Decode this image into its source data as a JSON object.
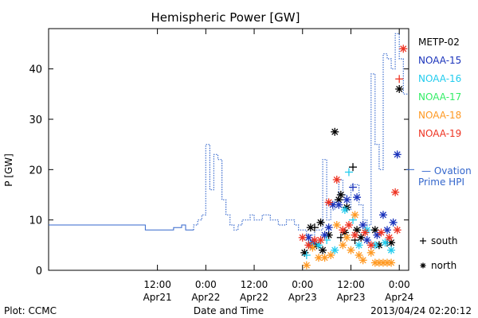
{
  "chart_data": {
    "type": "line",
    "title": "Hemispheric Power [GW]",
    "ylabel": "P [GW]",
    "xlabel": "Date and Time",
    "ylim": [
      0,
      48
    ],
    "yticks": [
      0,
      10,
      20,
      30,
      40
    ],
    "xlim": [
      "2013-04-20 09:00",
      "2013-04-24 02:20"
    ],
    "xticks": [
      {
        "time": "2013-04-21 12:00",
        "line1": "12:00",
        "line2": "Apr21"
      },
      {
        "time": "2013-04-22 00:00",
        "line1": "0:00",
        "line2": "Apr22"
      },
      {
        "time": "2013-04-22 12:00",
        "line1": "12:00",
        "line2": "Apr22"
      },
      {
        "time": "2013-04-23 00:00",
        "line1": "0:00",
        "line2": "Apr23"
      },
      {
        "time": "2013-04-23 12:00",
        "line1": "12:00",
        "line2": "Apr23"
      },
      {
        "time": "2013-04-24 00:00",
        "line1": "0:00",
        "line2": "Apr24"
      }
    ],
    "ovation": {
      "name_line1": "Ovation",
      "name_line2": "Prime HPI",
      "color": "#3366cc",
      "solid_x": [
        "2013-04-20 09:00",
        "2013-04-21 09:00",
        "2013-04-21 09:00",
        "2013-04-21 16:00",
        "2013-04-21 16:00",
        "2013-04-21 18:00",
        "2013-04-21 18:00",
        "2013-04-21 19:00",
        "2013-04-21 19:00",
        "2013-04-21 21:00"
      ],
      "solid_y": [
        9,
        9,
        8,
        8,
        8.5,
        8.5,
        9,
        9,
        8,
        8
      ],
      "dotted_x": [
        "2013-04-21 21:00",
        "2013-04-21 21:00",
        "2013-04-21 22:00",
        "2013-04-21 22:00",
        "2013-04-21 23:00",
        "2013-04-21 23:00",
        "2013-04-22 00:00",
        "2013-04-22 00:00",
        "2013-04-22 01:00",
        "2013-04-22 01:00",
        "2013-04-22 02:00",
        "2013-04-22 02:00",
        "2013-04-22 03:00",
        "2013-04-22 03:00",
        "2013-04-22 04:00",
        "2013-04-22 04:00",
        "2013-04-22 05:00",
        "2013-04-22 05:00",
        "2013-04-22 06:00",
        "2013-04-22 06:00",
        "2013-04-22 07:00",
        "2013-04-22 07:00",
        "2013-04-22 08:00",
        "2013-04-22 08:00",
        "2013-04-22 09:00",
        "2013-04-22 09:00",
        "2013-04-22 11:00",
        "2013-04-22 11:00",
        "2013-04-22 12:00",
        "2013-04-22 12:00",
        "2013-04-22 14:00",
        "2013-04-22 14:00",
        "2013-04-22 16:00",
        "2013-04-22 16:00",
        "2013-04-22 18:00",
        "2013-04-22 18:00",
        "2013-04-22 20:00",
        "2013-04-22 20:00",
        "2013-04-22 22:00",
        "2013-04-22 22:00",
        "2013-04-22 23:00",
        "2013-04-22 23:00",
        "2013-04-23 01:00",
        "2013-04-23 01:00",
        "2013-04-23 03:00",
        "2013-04-23 03:00",
        "2013-04-23 05:00",
        "2013-04-23 05:00",
        "2013-04-23 06:00",
        "2013-04-23 06:00",
        "2013-04-23 07:00",
        "2013-04-23 07:00",
        "2013-04-23 08:00",
        "2013-04-23 08:00",
        "2013-04-23 09:00",
        "2013-04-23 09:00",
        "2013-04-23 10:00",
        "2013-04-23 10:00",
        "2013-04-23 11:00",
        "2013-04-23 11:00",
        "2013-04-23 12:00",
        "2013-04-23 12:00",
        "2013-04-23 14:00",
        "2013-04-23 14:00",
        "2013-04-23 15:00",
        "2013-04-23 15:00",
        "2013-04-23 16:00",
        "2013-04-23 16:00",
        "2013-04-23 17:00",
        "2013-04-23 17:00",
        "2013-04-23 18:00",
        "2013-04-23 18:00",
        "2013-04-23 19:00",
        "2013-04-23 19:00",
        "2013-04-23 20:00",
        "2013-04-23 20:00",
        "2013-04-23 21:00",
        "2013-04-23 21:00",
        "2013-04-23 22:00",
        "2013-04-23 22:00",
        "2013-04-23 23:00",
        "2013-04-23 23:00",
        "2013-04-24 00:00",
        "2013-04-24 00:00",
        "2013-04-24 01:00",
        "2013-04-24 01:00",
        "2013-04-24 02:20"
      ],
      "dotted_y": [
        8,
        9,
        9,
        10,
        10,
        11,
        11,
        25,
        25,
        16,
        16,
        23,
        23,
        22,
        22,
        14,
        14,
        11,
        11,
        9,
        9,
        8,
        8,
        9,
        9,
        10,
        10,
        11,
        11,
        10,
        10,
        11,
        11,
        10,
        10,
        9,
        9,
        10,
        10,
        9,
        9,
        8,
        8,
        7,
        7,
        8,
        8,
        22,
        22,
        10,
        10,
        12,
        12,
        14,
        14,
        18,
        18,
        15,
        15,
        12,
        12,
        17,
        17,
        13,
        13,
        10,
        10,
        9,
        9,
        39,
        39,
        25,
        25,
        20,
        20,
        43,
        43,
        42,
        42,
        40,
        40,
        47,
        47,
        42,
        42,
        35,
        35
      ]
    },
    "series": [
      {
        "name": "METP-02",
        "color": "#000000",
        "points": [
          {
            "t": "2013-04-23 00:30",
            "y": 3.5,
            "m": "*"
          },
          {
            "t": "2013-04-23 02:00",
            "y": 8.5,
            "m": "*"
          },
          {
            "t": "2013-04-23 03:00",
            "y": 8.5,
            "m": "+"
          },
          {
            "t": "2013-04-23 03:30",
            "y": 5,
            "m": "*"
          },
          {
            "t": "2013-04-23 04:30",
            "y": 9.5,
            "m": "*"
          },
          {
            "t": "2013-04-23 05:00",
            "y": 4,
            "m": "*"
          },
          {
            "t": "2013-04-23 06:30",
            "y": 7,
            "m": "*"
          },
          {
            "t": "2013-04-23 08:00",
            "y": 27.5,
            "m": "*"
          },
          {
            "t": "2013-04-23 09:00",
            "y": 14,
            "m": "*"
          },
          {
            "t": "2013-04-23 09:30",
            "y": 15,
            "m": "*"
          },
          {
            "t": "2013-04-23 09:30",
            "y": 6.5,
            "m": "+"
          },
          {
            "t": "2013-04-23 10:30",
            "y": 7.5,
            "m": "*"
          },
          {
            "t": "2013-04-23 11:00",
            "y": 12.5,
            "m": "*"
          },
          {
            "t": "2013-04-23 12:30",
            "y": 20.5,
            "m": "+"
          },
          {
            "t": "2013-04-23 13:00",
            "y": 6,
            "m": "+"
          },
          {
            "t": "2013-04-23 13:30",
            "y": 8,
            "m": "*"
          },
          {
            "t": "2013-04-23 14:30",
            "y": 6.5,
            "m": "*"
          },
          {
            "t": "2013-04-23 18:00",
            "y": 8,
            "m": "*"
          },
          {
            "t": "2013-04-23 19:00",
            "y": 5,
            "m": "*"
          },
          {
            "t": "2013-04-23 21:00",
            "y": 5.5,
            "m": "+"
          },
          {
            "t": "2013-04-23 22:00",
            "y": 5.5,
            "m": "*"
          },
          {
            "t": "2013-04-24 00:00",
            "y": 36,
            "m": "*"
          }
        ]
      },
      {
        "name": "NOAA-15",
        "color": "#1a33bb",
        "points": [
          {
            "t": "2013-04-23 01:30",
            "y": 6.5,
            "m": "*"
          },
          {
            "t": "2013-04-23 02:30",
            "y": 5.5,
            "m": "*"
          },
          {
            "t": "2013-04-23 05:30",
            "y": 7,
            "m": "*"
          },
          {
            "t": "2013-04-23 06:30",
            "y": 8.5,
            "m": "*"
          },
          {
            "t": "2013-04-23 07:30",
            "y": 13,
            "m": "*"
          },
          {
            "t": "2013-04-23 09:00",
            "y": 13,
            "m": "*"
          },
          {
            "t": "2013-04-23 11:00",
            "y": 14,
            "m": "*"
          },
          {
            "t": "2013-04-23 12:30",
            "y": 16.5,
            "m": "+"
          },
          {
            "t": "2013-04-23 13:30",
            "y": 14.5,
            "m": "*"
          },
          {
            "t": "2013-04-23 15:00",
            "y": 9,
            "m": "*"
          },
          {
            "t": "2013-04-23 16:00",
            "y": 6,
            "m": "*"
          },
          {
            "t": "2013-04-23 18:30",
            "y": 7,
            "m": "*"
          },
          {
            "t": "2013-04-23 20:00",
            "y": 11,
            "m": "*"
          },
          {
            "t": "2013-04-23 21:00",
            "y": 8,
            "m": "*"
          },
          {
            "t": "2013-04-23 22:30",
            "y": 9.5,
            "m": "*"
          },
          {
            "t": "2013-04-23 23:30",
            "y": 23,
            "m": "*"
          }
        ]
      },
      {
        "name": "NOAA-16",
        "color": "#22ccee",
        "points": [
          {
            "t": "2013-04-23 01:00",
            "y": 3,
            "m": "+"
          },
          {
            "t": "2013-04-23 02:00",
            "y": 5,
            "m": "*"
          },
          {
            "t": "2013-04-23 04:00",
            "y": 5,
            "m": "*"
          },
          {
            "t": "2013-04-23 06:00",
            "y": 6,
            "m": "+"
          },
          {
            "t": "2013-04-23 08:00",
            "y": 4,
            "m": "*"
          },
          {
            "t": "2013-04-23 10:30",
            "y": 12,
            "m": "*"
          },
          {
            "t": "2013-04-23 11:30",
            "y": 19.5,
            "m": "+"
          },
          {
            "t": "2013-04-23 12:30",
            "y": 10,
            "m": "+"
          },
          {
            "t": "2013-04-23 14:00",
            "y": 5,
            "m": "*"
          },
          {
            "t": "2013-04-23 16:00",
            "y": 8,
            "m": "*"
          },
          {
            "t": "2013-04-23 18:00",
            "y": 5,
            "m": "*"
          },
          {
            "t": "2013-04-23 20:30",
            "y": 5.5,
            "m": "*"
          },
          {
            "t": "2013-04-23 22:00",
            "y": 4,
            "m": "*"
          }
        ]
      },
      {
        "name": "NOAA-17",
        "color": "#33ee66",
        "points": []
      },
      {
        "name": "NOAA-18",
        "color": "#ff9922",
        "points": [
          {
            "t": "2013-04-23 01:00",
            "y": 1,
            "m": "*"
          },
          {
            "t": "2013-04-23 02:30",
            "y": 4.5,
            "m": "*"
          },
          {
            "t": "2013-04-23 04:00",
            "y": 2.5,
            "m": "*"
          },
          {
            "t": "2013-04-23 05:30",
            "y": 2.5,
            "m": "*"
          },
          {
            "t": "2013-04-23 07:00",
            "y": 3,
            "m": "*"
          },
          {
            "t": "2013-04-23 08:30",
            "y": 9,
            "m": "*"
          },
          {
            "t": "2013-04-23 10:00",
            "y": 5,
            "m": "*"
          },
          {
            "t": "2013-04-23 11:00",
            "y": 6.5,
            "m": "*"
          },
          {
            "t": "2013-04-23 12:00",
            "y": 4,
            "m": "*"
          },
          {
            "t": "2013-04-23 13:00",
            "y": 11,
            "m": "*"
          },
          {
            "t": "2013-04-23 14:00",
            "y": 3,
            "m": "*"
          },
          {
            "t": "2013-04-23 15:00",
            "y": 2,
            "m": "*"
          },
          {
            "t": "2013-04-23 17:00",
            "y": 3.5,
            "m": "*"
          },
          {
            "t": "2013-04-23 18:00",
            "y": 1.5,
            "m": "*"
          },
          {
            "t": "2013-04-23 19:00",
            "y": 1.5,
            "m": "*"
          },
          {
            "t": "2013-04-23 20:00",
            "y": 1.5,
            "m": "*"
          },
          {
            "t": "2013-04-23 21:00",
            "y": 1.5,
            "m": "*"
          },
          {
            "t": "2013-04-23 22:00",
            "y": 1.5,
            "m": "*"
          }
        ]
      },
      {
        "name": "NOAA-19",
        "color": "#ee3322",
        "points": [
          {
            "t": "2013-04-23 00:00",
            "y": 6.5,
            "m": "*"
          },
          {
            "t": "2013-04-23 01:30",
            "y": 5,
            "m": "*"
          },
          {
            "t": "2013-04-23 03:00",
            "y": 6,
            "m": "*"
          },
          {
            "t": "2013-04-23 04:30",
            "y": 6,
            "m": "*"
          },
          {
            "t": "2013-04-23 06:30",
            "y": 13.5,
            "m": "*"
          },
          {
            "t": "2013-04-23 08:30",
            "y": 18,
            "m": "*"
          },
          {
            "t": "2013-04-23 10:00",
            "y": 8,
            "m": "*"
          },
          {
            "t": "2013-04-23 11:30",
            "y": 9,
            "m": "*"
          },
          {
            "t": "2013-04-23 13:00",
            "y": 7,
            "m": "*"
          },
          {
            "t": "2013-04-23 15:30",
            "y": 7.5,
            "m": "*"
          },
          {
            "t": "2013-04-23 17:00",
            "y": 5,
            "m": "*"
          },
          {
            "t": "2013-04-23 19:30",
            "y": 7.5,
            "m": "*"
          },
          {
            "t": "2013-04-23 21:30",
            "y": 6.5,
            "m": "*"
          },
          {
            "t": "2013-04-23 23:00",
            "y": 15.5,
            "m": "*"
          },
          {
            "t": "2013-04-23 23:30",
            "y": 8,
            "m": "*"
          },
          {
            "t": "2013-04-24 00:00",
            "y": 38,
            "m": "+"
          },
          {
            "t": "2013-04-24 01:00",
            "y": 44,
            "m": "*"
          }
        ]
      }
    ],
    "marker_key": [
      {
        "symbol": "+",
        "label": "south"
      },
      {
        "symbol": "*",
        "label": "north"
      }
    ]
  },
  "footer": {
    "plot_credit": "Plot: CCMC",
    "timestamp": "2013/04/24 02:20:12"
  }
}
